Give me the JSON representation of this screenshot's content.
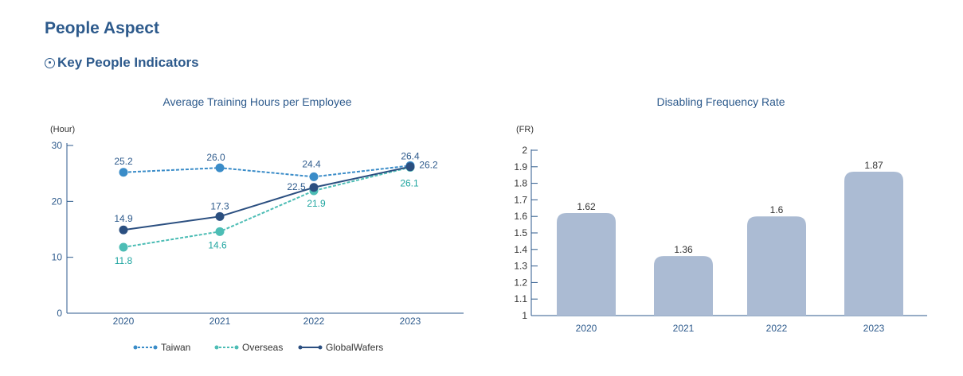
{
  "page": {
    "title": "People Aspect",
    "section_title": "Key People Indicators"
  },
  "chart_data": [
    {
      "type": "line",
      "title": "Average Training Hours per Employee",
      "unit_label": "(Hour)",
      "categories": [
        "2020",
        "2021",
        "2022",
        "2023"
      ],
      "ylim": [
        0,
        30
      ],
      "yticks": [
        0,
        10,
        20,
        30
      ],
      "grid": false,
      "legend_position": "bottom",
      "series": [
        {
          "name": "Taiwan",
          "values": [
            25.2,
            26.0,
            24.4,
            26.4
          ],
          "color": "#3a8cc8",
          "dashed": true
        },
        {
          "name": "Overseas",
          "values": [
            11.8,
            14.6,
            21.9,
            26.1
          ],
          "color": "#4dbdb5",
          "dashed": true
        },
        {
          "name": "GlobalWafers",
          "values": [
            14.9,
            17.3,
            22.5,
            26.2
          ],
          "color": "#2b4f80",
          "dashed": false
        }
      ]
    },
    {
      "type": "bar",
      "title": "Disabling Frequency Rate",
      "unit_label": "(FR)",
      "categories": [
        "2020",
        "2021",
        "2022",
        "2023"
      ],
      "values": [
        1.62,
        1.36,
        1.6,
        1.87
      ],
      "ylim": [
        1,
        2
      ],
      "yticks": [
        1,
        1.1,
        1.2,
        1.3,
        1.4,
        1.5,
        1.6,
        1.7,
        1.8,
        1.9,
        2
      ],
      "grid": false,
      "bar_color": "#abbbd3"
    }
  ],
  "colors": {
    "heading": "#2d5a8c",
    "axis": "#2d5a8c",
    "label_text": "#2d5a8c"
  }
}
